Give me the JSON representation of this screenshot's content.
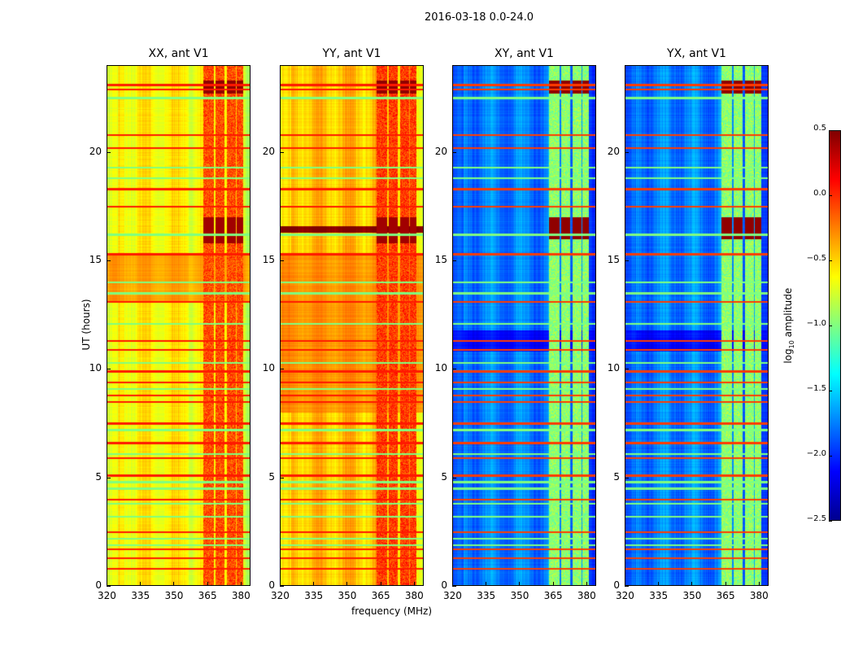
{
  "chart_data": {
    "type": "heatmap",
    "title": "2016-03-18 0.0-24.0",
    "xlabel": "frequency (MHz)",
    "ylabel": "UT (hours)",
    "xlim": [
      320,
      384.4
    ],
    "ylim": [
      0,
      24
    ],
    "xticks": [
      "320",
      "335",
      "350",
      "365",
      "380"
    ],
    "xtick_values": [
      320,
      335,
      350,
      365,
      380
    ],
    "yticks": [
      "0",
      "5",
      "10",
      "15",
      "20"
    ],
    "ytick_values": [
      0,
      5,
      10,
      15,
      20
    ],
    "colorbar": {
      "label_main": "log",
      "label_sub": "10",
      "label_rest": " amplitude",
      "range": [
        -2.5,
        0.5
      ],
      "ticks": [
        "0.5",
        "0.0",
        "−0.5",
        "−1.0",
        "−1.5",
        "−2.0",
        "−2.5"
      ],
      "tick_values": [
        0.5,
        0,
        -0.5,
        -1,
        -1.5,
        -2,
        -2.5
      ],
      "colormap": "jet"
    },
    "rfi_columns_mhz": [
      [
        363,
        368
      ],
      [
        368.5,
        372.5
      ],
      [
        373.5,
        377.5
      ],
      [
        378,
        381
      ]
    ],
    "red_rows_hours": [
      0.8,
      1.3,
      1.7,
      2.5,
      4.0,
      5.1,
      5.9,
      6.6,
      7.5,
      8.5,
      8.8,
      9.4,
      9.9,
      10.9,
      11.3,
      13.1,
      15.3,
      17.5,
      18.3,
      20.2,
      20.8,
      22.9,
      23.1
    ],
    "green_rows_hours": [
      1.9,
      2.2,
      3.2,
      3.8,
      4.5,
      4.8,
      6.1,
      7.2,
      9.1,
      10.3,
      12.1,
      13.5,
      14.0,
      16.2,
      18.8,
      19.3,
      22.5
    ],
    "panels": [
      {
        "title": "XX, ant V1",
        "base": -0.6,
        "band_level": -0.1,
        "blocks": [
          {
            "t": [
              13.1,
              15.3
            ],
            "v": -0.35
          },
          {
            "t": [
              22.7,
              23.3
            ],
            "v": 0.45,
            "rfi_only": true
          },
          {
            "t": [
              15.8,
              17.0
            ],
            "v": 0.4,
            "rfi_only": true
          }
        ]
      },
      {
        "title": "YY, ant V1",
        "base": -0.45,
        "band_level": -0.05,
        "blocks": [
          {
            "t": [
              8.0,
              15.3
            ],
            "v": -0.3
          },
          {
            "t": [
              16.3,
              16.6
            ],
            "v": 0.5
          },
          {
            "t": [
              22.7,
              23.3
            ],
            "v": 0.45,
            "rfi_only": true
          },
          {
            "t": [
              15.8,
              17.0
            ],
            "v": 0.4,
            "rfi_only": true
          }
        ]
      },
      {
        "title": "XY, ant V1",
        "base": -1.75,
        "band_level": -0.95,
        "blocks": [
          {
            "t": [
              10.8,
              11.8
            ],
            "v": -2.1
          },
          {
            "t": [
              22.7,
              23.3
            ],
            "v": 0.45,
            "rfi_only": true
          },
          {
            "t": [
              16.0,
              17.0
            ],
            "v": 0.45,
            "rfi_only": true
          }
        ]
      },
      {
        "title": "YX, ant V1",
        "base": -1.75,
        "band_level": -0.95,
        "blocks": [
          {
            "t": [
              10.8,
              11.8
            ],
            "v": -2.1
          },
          {
            "t": [
              22.7,
              23.3
            ],
            "v": 0.45,
            "rfi_only": true
          },
          {
            "t": [
              16.0,
              17.0
            ],
            "v": 0.45,
            "rfi_only": true
          }
        ]
      }
    ]
  }
}
